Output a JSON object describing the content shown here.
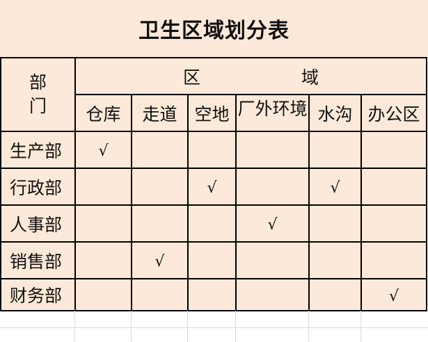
{
  "title": "卫生区域划分表",
  "header": {
    "dept_label": "部\n门",
    "region_label_1": "区",
    "region_label_2": "域",
    "columns": [
      "仓库",
      "走道",
      "空地",
      "厂外环境",
      "水沟",
      "办公区"
    ]
  },
  "check_mark": "√",
  "rows": [
    {
      "dept": "生产部",
      "checks": [
        true,
        false,
        false,
        false,
        false,
        false
      ]
    },
    {
      "dept": "行政部",
      "checks": [
        false,
        false,
        true,
        false,
        true,
        false
      ]
    },
    {
      "dept": "人事部",
      "checks": [
        false,
        false,
        false,
        true,
        false,
        false
      ]
    },
    {
      "dept": "销售部",
      "checks": [
        false,
        true,
        false,
        false,
        false,
        false
      ]
    },
    {
      "dept": "财务部",
      "checks": [
        false,
        false,
        false,
        false,
        false,
        true
      ]
    }
  ],
  "colors": {
    "fill": "#fde9d9",
    "border": "#000000"
  }
}
